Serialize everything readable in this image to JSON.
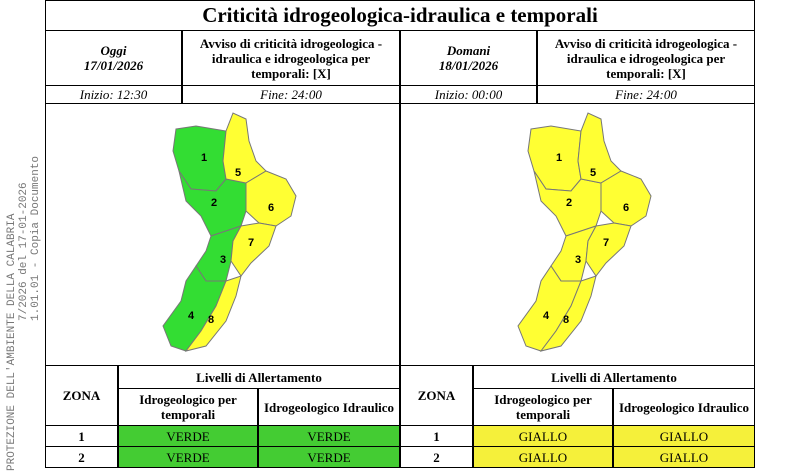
{
  "title": "Criticità idrogeologica-idraulica e temporali",
  "watermark": [
    "PROTEZIONE DELL'AMBIENTE DELLA CALABRIA",
    "7/2026 del 17-01-2026",
    "1.01.01 - Copia Documento"
  ],
  "panels": [
    {
      "day": "Oggi",
      "date": "17/01/2026",
      "notice": "Avviso di criticità idrogeologica - idraulica e idrogeologica per temporali: [X]",
      "start": "Inizio: 12:30",
      "end": "Fine: 24:00",
      "map": {
        "zones": [
          {
            "label": "1",
            "color": "#33dd33"
          },
          {
            "label": "2",
            "color": "#33dd33"
          },
          {
            "label": "3",
            "color": "#33dd33"
          },
          {
            "label": "4",
            "color": "#33dd33"
          },
          {
            "label": "5",
            "color": "#ffff33"
          },
          {
            "label": "6",
            "color": "#ffff33"
          },
          {
            "label": "7",
            "color": "#ffff33"
          },
          {
            "label": "8",
            "color": "#ffff33"
          }
        ]
      },
      "table": {
        "zone_header": "ZONA",
        "levels_header": "Livelli di Allertamento",
        "columns": [
          "Idrogeologico per temporali",
          "Idrogeologico Idraulico"
        ],
        "rows": [
          [
            "1",
            "VERDE",
            "VERDE"
          ],
          [
            "2",
            "VERDE",
            "VERDE"
          ]
        ],
        "row_colors": [
          [
            "#44cc33",
            "#44cc33"
          ],
          [
            "#44cc33",
            "#44cc33"
          ]
        ]
      }
    },
    {
      "day": "Domani",
      "date": "18/01/2026",
      "notice": "Avviso di criticità idrogeologica - idraulica e idrogeologica per temporali: [X]",
      "start": "Inizio: 00:00",
      "end": "Fine: 24:00",
      "map": {
        "zones": [
          {
            "label": "1",
            "color": "#ffff33"
          },
          {
            "label": "2",
            "color": "#ffff33"
          },
          {
            "label": "3",
            "color": "#ffff33"
          },
          {
            "label": "4",
            "color": "#ffff33"
          },
          {
            "label": "5",
            "color": "#ffff33"
          },
          {
            "label": "6",
            "color": "#ffff33"
          },
          {
            "label": "7",
            "color": "#ffff33"
          },
          {
            "label": "8",
            "color": "#ffff33"
          }
        ]
      },
      "table": {
        "zone_header": "ZONA",
        "levels_header": "Livelli di Allertamento",
        "columns": [
          "Idrogeologico per temporali",
          "Idrogeologico Idraulico"
        ],
        "rows": [
          [
            "1",
            "GIALLO",
            "GIALLO"
          ],
          [
            "2",
            "GIALLO",
            "GIALLO"
          ]
        ],
        "row_colors": [
          [
            "#f5f03a",
            "#f5f03a"
          ],
          [
            "#f5f03a",
            "#f5f03a"
          ]
        ]
      }
    }
  ]
}
